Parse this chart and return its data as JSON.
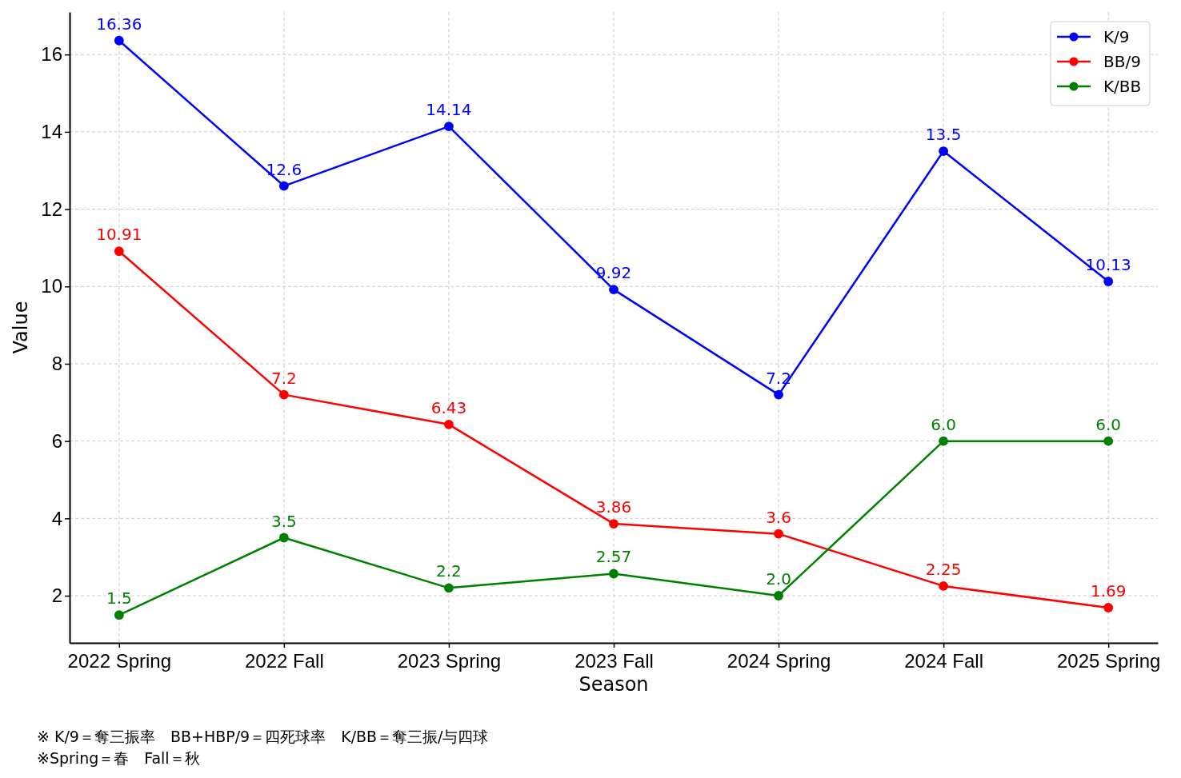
{
  "chart_data": {
    "type": "line",
    "xlabel": "Season",
    "ylabel": "Value",
    "categories": [
      "2022 Spring",
      "2022 Fall",
      "2023 Spring",
      "2023 Fall",
      "2024 Spring",
      "2024 Fall",
      "2025 Spring"
    ],
    "series": [
      {
        "name": "K/9",
        "color": "#0000ff",
        "values": [
          16.36,
          12.6,
          14.14,
          9.92,
          7.2,
          13.5,
          10.13
        ],
        "value_labels": [
          "16.36",
          "12.6",
          "14.14",
          "9.92",
          "7.2",
          "13.5",
          "10.13"
        ]
      },
      {
        "name": "BB/9",
        "color": "#ff0000",
        "values": [
          10.91,
          7.2,
          6.43,
          3.86,
          3.6,
          2.25,
          1.69
        ],
        "value_labels": [
          "10.91",
          "7.2",
          "6.43",
          "3.86",
          "3.6",
          "2.25",
          "1.69"
        ]
      },
      {
        "name": "K/BB",
        "color": "#008000",
        "values": [
          1.5,
          3.5,
          2.2,
          2.57,
          2.0,
          6.0,
          6.0
        ],
        "value_labels": [
          "1.5",
          "3.5",
          "2.2",
          "2.57",
          "2.0",
          "6.0",
          "6.0"
        ]
      }
    ],
    "ylim": [
      0.78,
      17.1
    ],
    "yticks": [
      2,
      4,
      6,
      8,
      10,
      12,
      14,
      16
    ],
    "grid": true,
    "legend": "top right",
    "marker": "circle",
    "line_style": "solid",
    "annotations": [
      "※ K/9＝奪三振率　BB+HBP/9＝四死球率　K/BB＝奪三振/与四球",
      "※Spring＝春　Fall＝秋"
    ]
  }
}
